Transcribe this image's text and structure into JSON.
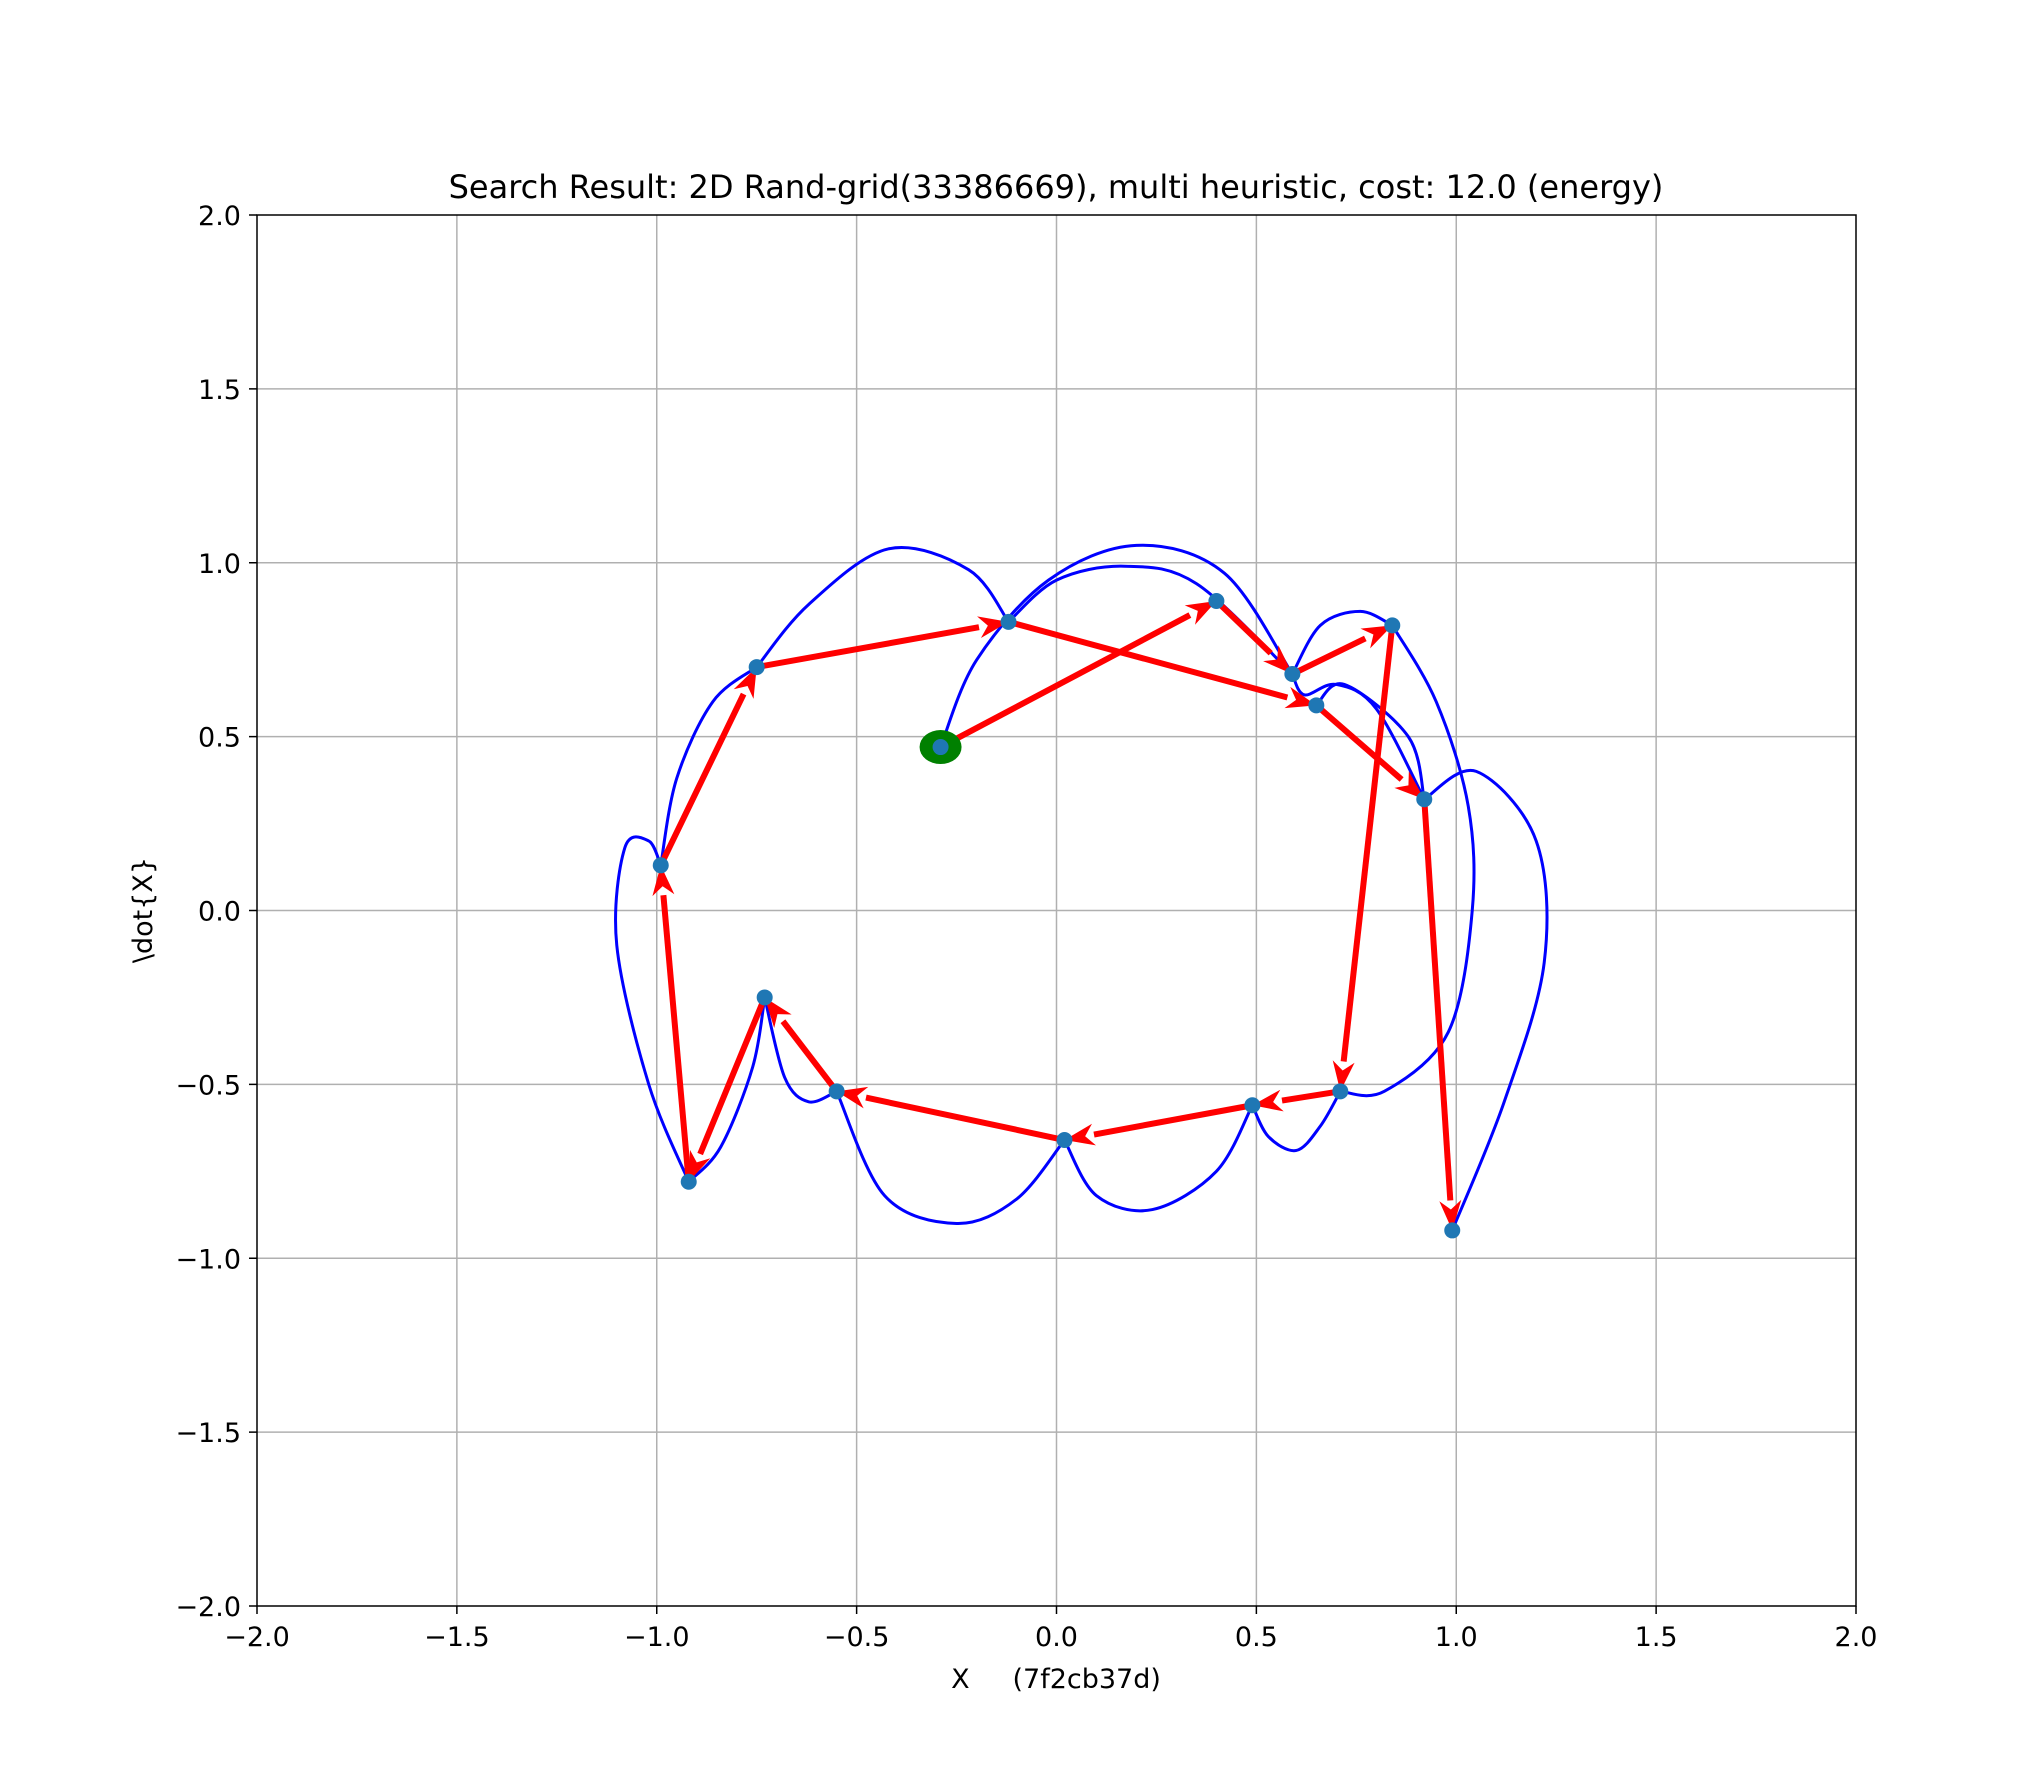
{
  "chart_data": {
    "type": "line",
    "title": "Search Result: 2D Rand-grid(33386669), multi heuristic, cost: 12.0 (energy)",
    "xlabel": "X     (7f2cb37d)",
    "ylabel": "\\dot{X}",
    "xlim": [
      -2.0,
      2.0
    ],
    "ylim": [
      -2.0,
      2.0
    ],
    "x_ticks": [
      -2.0,
      -1.5,
      -1.0,
      -0.5,
      0.0,
      0.5,
      1.0,
      1.5,
      2.0
    ],
    "y_ticks": [
      -2.0,
      -1.5,
      -1.0,
      -0.5,
      0.0,
      0.5,
      1.0,
      1.5,
      2.0
    ],
    "x_tick_labels": [
      "−2.0",
      "−1.5",
      "−1.0",
      "−0.5",
      "0.0",
      "0.5",
      "1.0",
      "1.5",
      "2.0"
    ],
    "y_tick_labels": [
      "−2.0",
      "−1.5",
      "−1.0",
      "−0.5",
      "0.0",
      "0.5",
      "1.0",
      "1.5",
      "2.0"
    ],
    "grid": true,
    "colors": {
      "path": "#0000ff",
      "arrows": "#ff0000",
      "nodes": "#1f77b4",
      "start": "#008000"
    },
    "start": {
      "x": -0.29,
      "y": 0.47
    },
    "nodes": [
      {
        "x": -0.29,
        "y": 0.47
      },
      {
        "x": 0.4,
        "y": 0.89
      },
      {
        "x": 0.59,
        "y": 0.68
      },
      {
        "x": 0.84,
        "y": 0.82
      },
      {
        "x": 0.71,
        "y": -0.52
      },
      {
        "x": 0.49,
        "y": -0.56
      },
      {
        "x": 0.02,
        "y": -0.66
      },
      {
        "x": -0.55,
        "y": -0.52
      },
      {
        "x": -0.73,
        "y": -0.25
      },
      {
        "x": -0.92,
        "y": -0.78
      },
      {
        "x": -0.99,
        "y": 0.13
      },
      {
        "x": -0.75,
        "y": 0.7
      },
      {
        "x": -0.12,
        "y": 0.83
      },
      {
        "x": 0.65,
        "y": 0.59
      },
      {
        "x": 0.92,
        "y": 0.32
      },
      {
        "x": 0.99,
        "y": -0.92
      }
    ],
    "arrows": [
      {
        "from": [
          -0.29,
          0.47
        ],
        "to": [
          0.4,
          0.89
        ]
      },
      {
        "from": [
          0.4,
          0.89
        ],
        "to": [
          0.59,
          0.68
        ]
      },
      {
        "from": [
          0.59,
          0.68
        ],
        "to": [
          0.84,
          0.82
        ]
      },
      {
        "from": [
          0.84,
          0.82
        ],
        "to": [
          0.71,
          -0.52
        ]
      },
      {
        "from": [
          0.71,
          -0.52
        ],
        "to": [
          0.49,
          -0.56
        ]
      },
      {
        "from": [
          0.49,
          -0.56
        ],
        "to": [
          0.02,
          -0.66
        ]
      },
      {
        "from": [
          0.02,
          -0.66
        ],
        "to": [
          -0.55,
          -0.52
        ]
      },
      {
        "from": [
          -0.55,
          -0.52
        ],
        "to": [
          -0.73,
          -0.25
        ]
      },
      {
        "from": [
          -0.73,
          -0.25
        ],
        "to": [
          -0.92,
          -0.78
        ]
      },
      {
        "from": [
          -0.92,
          -0.78
        ],
        "to": [
          -0.99,
          0.13
        ]
      },
      {
        "from": [
          -0.99,
          0.13
        ],
        "to": [
          -0.75,
          0.7
        ]
      },
      {
        "from": [
          -0.75,
          0.7
        ],
        "to": [
          -0.12,
          0.83
        ]
      },
      {
        "from": [
          -0.12,
          0.83
        ],
        "to": [
          0.65,
          0.59
        ]
      },
      {
        "from": [
          0.65,
          0.59
        ],
        "to": [
          0.92,
          0.32
        ]
      },
      {
        "from": [
          0.92,
          0.32
        ],
        "to": [
          0.99,
          -0.92
        ]
      }
    ],
    "curves": [
      {
        "points": [
          [
            -0.29,
            0.47
          ],
          [
            -0.2,
            0.72
          ],
          [
            -0.02,
            0.95
          ],
          [
            0.2,
            1.05
          ],
          [
            0.42,
            0.97
          ],
          [
            0.59,
            0.68
          ]
        ]
      },
      {
        "points": [
          [
            -0.12,
            0.83
          ],
          [
            0.0,
            0.95
          ],
          [
            0.17,
            0.99
          ],
          [
            0.35,
            0.94
          ],
          [
            0.59,
            0.68
          ]
        ]
      },
      {
        "points": [
          [
            0.59,
            0.68
          ],
          [
            0.66,
            0.82
          ],
          [
            0.76,
            0.86
          ],
          [
            0.84,
            0.82
          ]
        ]
      },
      {
        "points": [
          [
            0.84,
            0.82
          ],
          [
            0.95,
            0.6
          ],
          [
            1.03,
            0.3
          ],
          [
            1.04,
            0.0
          ],
          [
            0.98,
            -0.35
          ],
          [
            0.82,
            -0.52
          ],
          [
            0.71,
            -0.52
          ]
        ]
      },
      {
        "points": [
          [
            0.59,
            0.68
          ],
          [
            0.62,
            0.62
          ],
          [
            0.7,
            0.65
          ],
          [
            0.8,
            0.58
          ],
          [
            0.92,
            0.32
          ]
        ]
      },
      {
        "points": [
          [
            0.92,
            0.32
          ],
          [
            1.05,
            0.4
          ],
          [
            1.2,
            0.2
          ],
          [
            1.22,
            -0.15
          ],
          [
            1.12,
            -0.55
          ],
          [
            0.99,
            -0.92
          ]
        ]
      },
      {
        "points": [
          [
            0.71,
            -0.52
          ],
          [
            0.66,
            -0.62
          ],
          [
            0.6,
            -0.69
          ],
          [
            0.53,
            -0.65
          ],
          [
            0.49,
            -0.56
          ]
        ]
      },
      {
        "points": [
          [
            0.49,
            -0.56
          ],
          [
            0.4,
            -0.75
          ],
          [
            0.24,
            -0.86
          ],
          [
            0.1,
            -0.82
          ],
          [
            0.02,
            -0.66
          ]
        ]
      },
      {
        "points": [
          [
            0.02,
            -0.66
          ],
          [
            -0.1,
            -0.83
          ],
          [
            -0.25,
            -0.9
          ],
          [
            -0.43,
            -0.82
          ],
          [
            -0.55,
            -0.52
          ]
        ]
      },
      {
        "points": [
          [
            -0.55,
            -0.52
          ],
          [
            -0.62,
            -0.55
          ],
          [
            -0.68,
            -0.48
          ],
          [
            -0.73,
            -0.25
          ]
        ]
      },
      {
        "points": [
          [
            -0.73,
            -0.25
          ],
          [
            -0.76,
            -0.45
          ],
          [
            -0.84,
            -0.68
          ],
          [
            -0.92,
            -0.78
          ]
        ]
      },
      {
        "points": [
          [
            -0.92,
            -0.78
          ],
          [
            -1.02,
            -0.5
          ],
          [
            -1.1,
            -0.1
          ],
          [
            -1.08,
            0.18
          ],
          [
            -1.02,
            0.2
          ],
          [
            -0.99,
            0.13
          ]
        ]
      },
      {
        "points": [
          [
            -0.99,
            0.13
          ],
          [
            -0.95,
            0.38
          ],
          [
            -0.86,
            0.6
          ],
          [
            -0.75,
            0.7
          ]
        ]
      },
      {
        "points": [
          [
            -0.75,
            0.7
          ],
          [
            -0.62,
            0.88
          ],
          [
            -0.42,
            1.04
          ],
          [
            -0.22,
            0.98
          ],
          [
            -0.12,
            0.83
          ]
        ]
      },
      {
        "points": [
          [
            0.65,
            0.59
          ],
          [
            0.72,
            0.65
          ],
          [
            0.88,
            0.5
          ],
          [
            0.92,
            0.32
          ]
        ]
      }
    ]
  }
}
